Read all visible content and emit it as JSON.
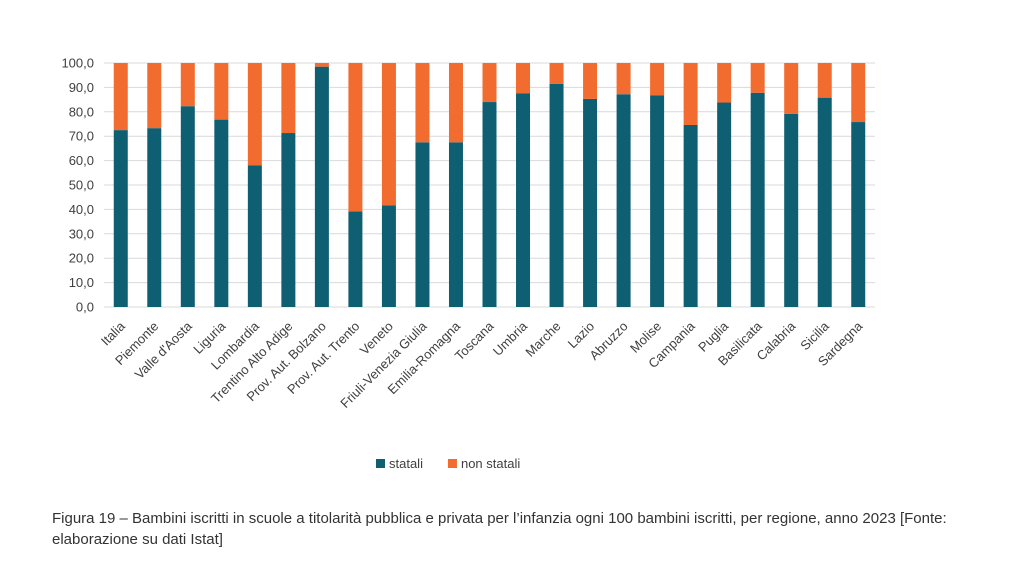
{
  "chart_data": {
    "type": "bar",
    "stacked": true,
    "categories": [
      "Italia",
      "Piemonte",
      "Valle d'Aosta",
      "Liguria",
      "Lombardia",
      "Trentino Alto Adige",
      "Prov. Aut. Bolzano",
      "Prov. Aut. Trento",
      "Veneto",
      "Friuli-Venezia Giulia",
      "Emilia-Romagna",
      "Toscana",
      "Umbria",
      "Marche",
      "Lazio",
      "Abruzzo",
      "Molise",
      "Campania",
      "Puglia",
      "Basilicata",
      "Calabria",
      "Sicilia",
      "Sardegna"
    ],
    "series": [
      {
        "name": "statali",
        "color": "#0f5f73",
        "values": [
          72.5,
          73.3,
          82.3,
          76.8,
          58.0,
          71.3,
          98.5,
          39.2,
          41.7,
          67.5,
          67.5,
          84.0,
          87.5,
          91.5,
          85.3,
          87.2,
          86.8,
          74.6,
          83.8,
          87.8,
          79.2,
          85.8,
          75.8
        ]
      },
      {
        "name": "non statali",
        "color": "#f26b2f",
        "values": [
          27.5,
          26.7,
          17.7,
          23.2,
          42.0,
          28.7,
          1.5,
          60.8,
          58.3,
          32.5,
          32.5,
          16.0,
          12.5,
          8.5,
          14.7,
          12.8,
          13.2,
          25.4,
          16.2,
          12.2,
          20.8,
          14.2,
          24.2
        ]
      }
    ],
    "yticks": [
      "0,0",
      "10,0",
      "20,0",
      "30,0",
      "40,0",
      "50,0",
      "60,0",
      "70,0",
      "80,0",
      "90,0",
      "100,0"
    ],
    "ylim": [
      0,
      100
    ],
    "grid": true,
    "legend_position": "bottom",
    "title": "",
    "xlabel": "",
    "ylabel": ""
  },
  "caption": "Figura 19 – Bambini iscritti in scuole a titolarità pubblica e privata per l’infanzia ogni 100 bambini iscritti, per regione, anno 2023 [Fonte: elaborazione su dati Istat]"
}
